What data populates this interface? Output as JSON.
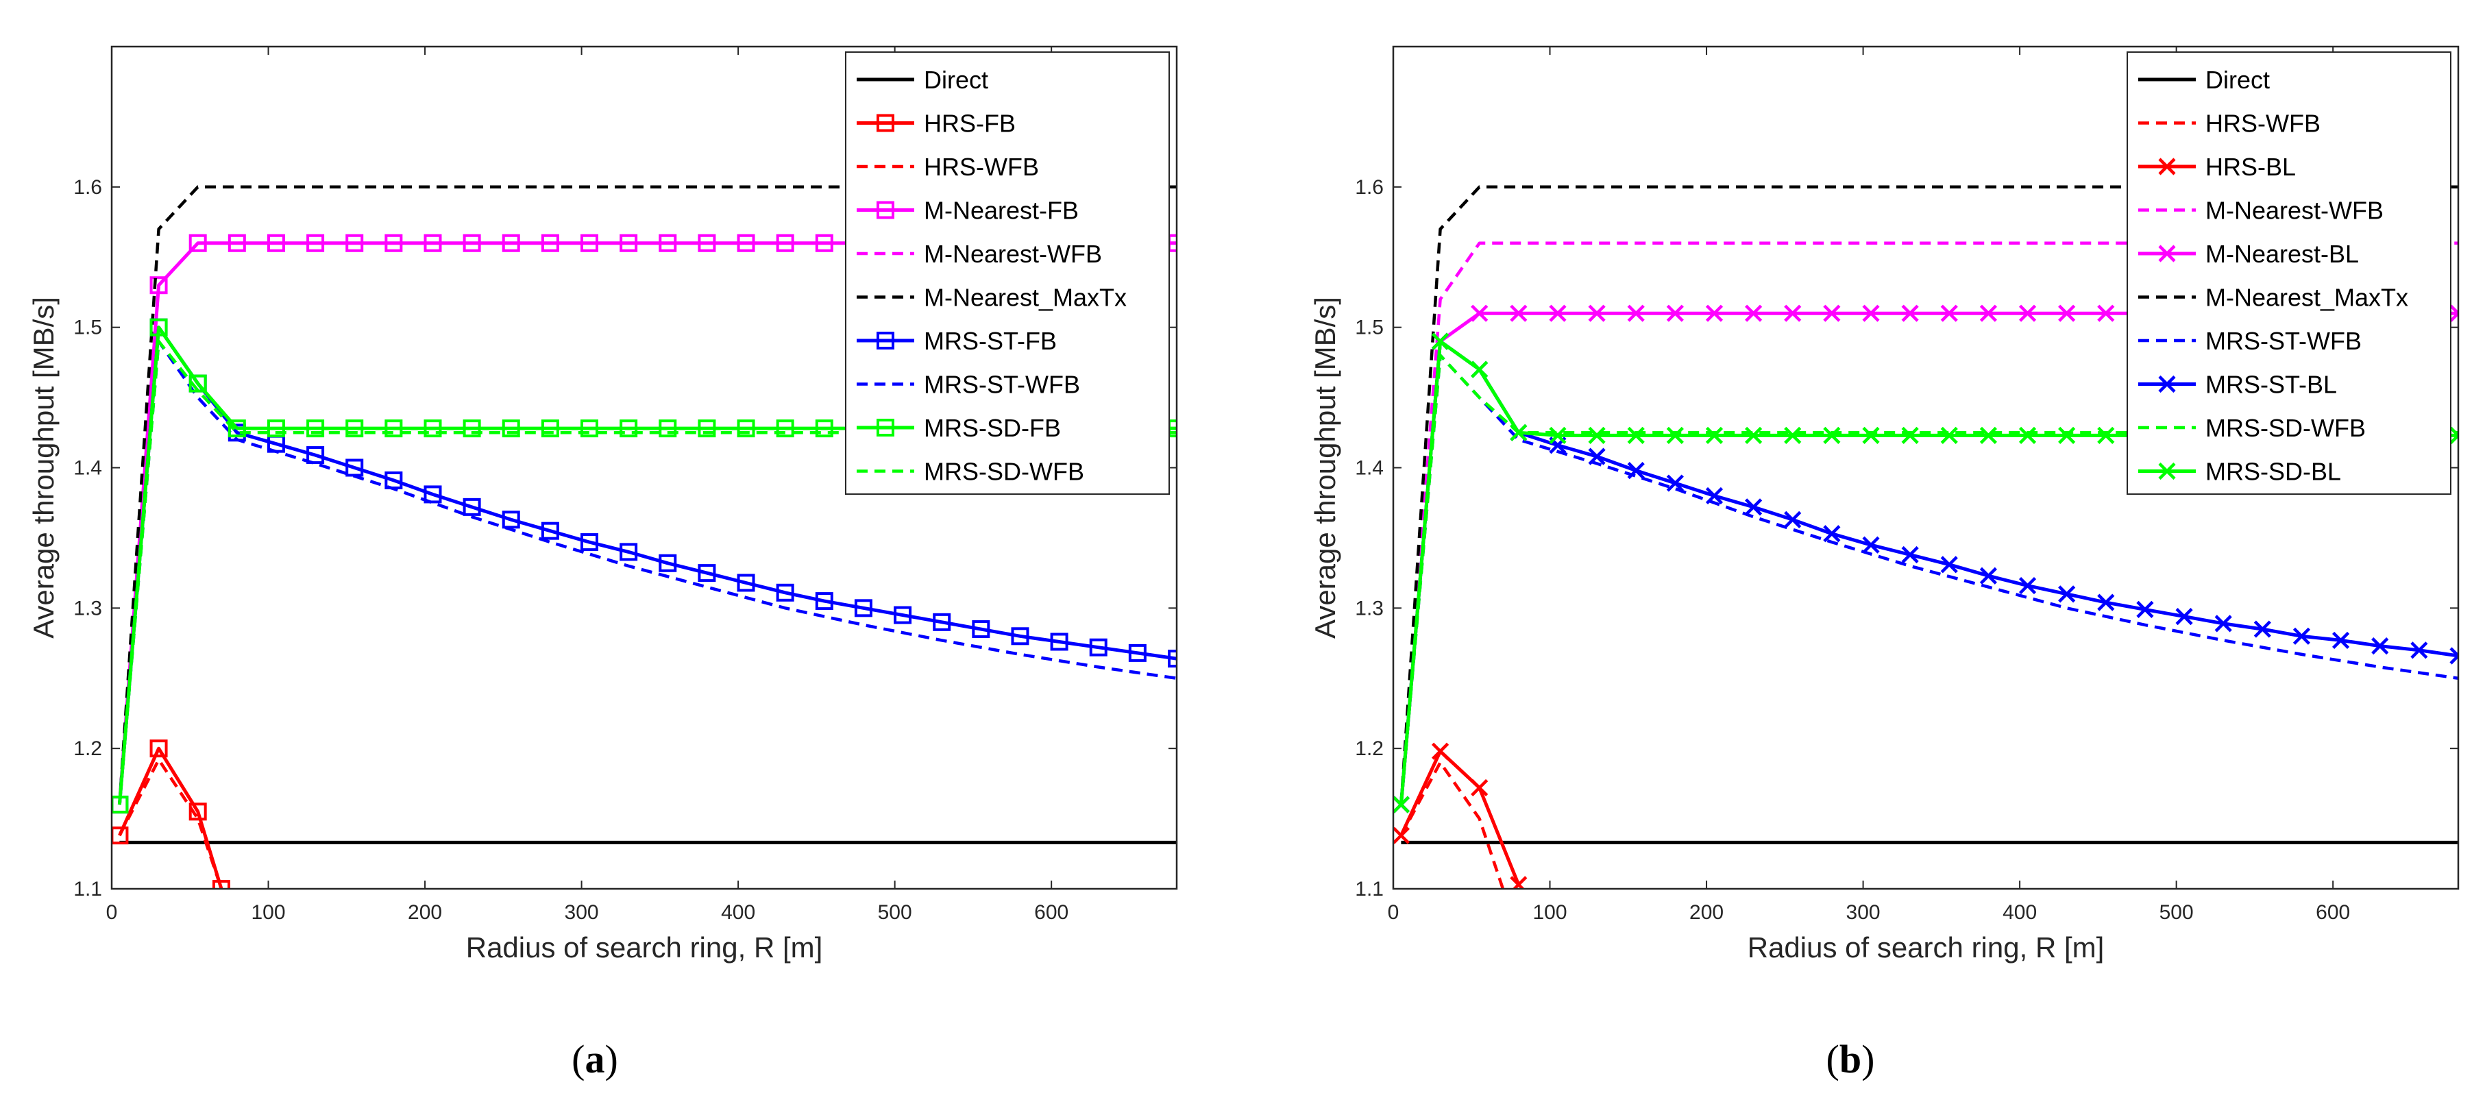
{
  "chart_data": [
    {
      "type": "line",
      "panel_label": "(a)",
      "panel_letter": "a",
      "xlabel": "Radius of search ring, R [m]",
      "ylabel": "Average throughput [MB/s]",
      "xlim": [
        0,
        680
      ],
      "ylim": [
        1.1,
        1.7
      ],
      "xticks": [
        0,
        100,
        200,
        300,
        400,
        500,
        600
      ],
      "yticks": [
        1.1,
        1.2,
        1.3,
        1.4,
        1.5,
        1.6
      ],
      "legend_position": "top-right",
      "series": [
        {
          "name": "Direct",
          "color": "#000000",
          "dash": "solid",
          "marker": "none",
          "x": [
            5,
            680
          ],
          "y": [
            1.133,
            1.133
          ]
        },
        {
          "name": "HRS-FB",
          "color": "#ff0000",
          "dash": "solid",
          "marker": "square",
          "x": [
            5,
            30,
            55,
            70
          ],
          "y": [
            1.138,
            1.2,
            1.155,
            1.1
          ]
        },
        {
          "name": "HRS-WFB",
          "color": "#ff0000",
          "dash": "dashed",
          "marker": "none",
          "x": [
            5,
            30,
            55,
            70
          ],
          "y": [
            1.138,
            1.192,
            1.15,
            1.1
          ]
        },
        {
          "name": "M-Nearest-FB",
          "color": "#ff00ff",
          "dash": "solid",
          "marker": "square",
          "x": [
            5,
            30,
            55,
            80,
            105,
            130,
            155,
            180,
            205,
            230,
            255,
            280,
            305,
            330,
            355,
            380,
            405,
            430,
            455,
            480,
            505,
            530,
            555,
            580,
            605,
            630,
            655,
            680
          ],
          "y": [
            1.16,
            1.53,
            1.56,
            1.56,
            1.56,
            1.56,
            1.56,
            1.56,
            1.56,
            1.56,
            1.56,
            1.56,
            1.56,
            1.56,
            1.56,
            1.56,
            1.56,
            1.56,
            1.56,
            1.56,
            1.56,
            1.56,
            1.56,
            1.56,
            1.56,
            1.56,
            1.56,
            1.56
          ]
        },
        {
          "name": "M-Nearest-WFB",
          "color": "#ff00ff",
          "dash": "dashed",
          "marker": "none",
          "x": [
            5,
            30,
            55,
            80,
            680
          ],
          "y": [
            1.16,
            1.53,
            1.56,
            1.56,
            1.56
          ]
        },
        {
          "name": "M-Nearest_MaxTx",
          "color": "#000000",
          "dash": "dashed",
          "marker": "none",
          "x": [
            5,
            30,
            55,
            80,
            680
          ],
          "y": [
            1.16,
            1.57,
            1.6,
            1.6,
            1.6
          ]
        },
        {
          "name": "MRS-ST-FB",
          "color": "#0000ff",
          "dash": "solid",
          "marker": "square",
          "x": [
            5,
            30,
            55,
            80,
            105,
            130,
            155,
            180,
            205,
            230,
            255,
            280,
            305,
            330,
            355,
            380,
            405,
            430,
            455,
            480,
            505,
            530,
            555,
            580,
            605,
            630,
            655,
            680
          ],
          "y": [
            1.16,
            1.5,
            1.46,
            1.425,
            1.417,
            1.409,
            1.4,
            1.391,
            1.381,
            1.372,
            1.363,
            1.355,
            1.347,
            1.34,
            1.332,
            1.325,
            1.318,
            1.311,
            1.305,
            1.3,
            1.295,
            1.29,
            1.285,
            1.28,
            1.276,
            1.272,
            1.268,
            1.264
          ]
        },
        {
          "name": "MRS-ST-WFB",
          "color": "#0000ff",
          "dash": "dashed",
          "marker": "none",
          "x": [
            5,
            30,
            55,
            80,
            130,
            180,
            230,
            280,
            330,
            380,
            430,
            480,
            530,
            580,
            630,
            680
          ],
          "y": [
            1.16,
            1.49,
            1.45,
            1.42,
            1.403,
            1.385,
            1.365,
            1.347,
            1.33,
            1.315,
            1.3,
            1.288,
            1.277,
            1.267,
            1.258,
            1.25
          ]
        },
        {
          "name": "MRS-SD-FB",
          "color": "#00ff00",
          "dash": "solid",
          "marker": "square",
          "x": [
            5,
            30,
            55,
            80,
            105,
            130,
            155,
            180,
            205,
            230,
            255,
            280,
            305,
            330,
            355,
            380,
            405,
            430,
            455,
            480,
            505,
            530,
            555,
            580,
            605,
            630,
            655,
            680
          ],
          "y": [
            1.16,
            1.5,
            1.46,
            1.428,
            1.428,
            1.428,
            1.428,
            1.428,
            1.428,
            1.428,
            1.428,
            1.428,
            1.428,
            1.428,
            1.428,
            1.428,
            1.428,
            1.428,
            1.428,
            1.428,
            1.428,
            1.428,
            1.428,
            1.428,
            1.428,
            1.428,
            1.428,
            1.428
          ]
        },
        {
          "name": "MRS-SD-WFB",
          "color": "#00ff00",
          "dash": "dashed",
          "marker": "none",
          "x": [
            5,
            30,
            55,
            80,
            680
          ],
          "y": [
            1.16,
            1.49,
            1.455,
            1.425,
            1.425
          ]
        }
      ]
    },
    {
      "type": "line",
      "panel_label": "(b)",
      "panel_letter": "b",
      "xlabel": "Radius of search ring, R [m]",
      "ylabel": "Average throughput [MB/s]",
      "xlim": [
        0,
        680
      ],
      "ylim": [
        1.1,
        1.7
      ],
      "xticks": [
        0,
        100,
        200,
        300,
        400,
        500,
        600
      ],
      "yticks": [
        1.1,
        1.2,
        1.3,
        1.4,
        1.5,
        1.6
      ],
      "legend_position": "top-right",
      "series": [
        {
          "name": "Direct",
          "color": "#000000",
          "dash": "solid",
          "marker": "none",
          "x": [
            5,
            680
          ],
          "y": [
            1.133,
            1.133
          ]
        },
        {
          "name": "HRS-WFB",
          "color": "#ff0000",
          "dash": "dashed",
          "marker": "none",
          "x": [
            5,
            30,
            55,
            70
          ],
          "y": [
            1.138,
            1.19,
            1.15,
            1.1
          ]
        },
        {
          "name": "HRS-BL",
          "color": "#ff0000",
          "dash": "solid",
          "marker": "x",
          "x": [
            5,
            30,
            55,
            80
          ],
          "y": [
            1.138,
            1.198,
            1.172,
            1.103
          ]
        },
        {
          "name": "M-Nearest-WFB",
          "color": "#ff00ff",
          "dash": "dashed",
          "marker": "none",
          "x": [
            5,
            30,
            55,
            80,
            680
          ],
          "y": [
            1.16,
            1.52,
            1.56,
            1.56,
            1.56
          ]
        },
        {
          "name": "M-Nearest-BL",
          "color": "#ff00ff",
          "dash": "solid",
          "marker": "x",
          "x": [
            5,
            30,
            55,
            80,
            105,
            130,
            155,
            180,
            205,
            230,
            255,
            280,
            305,
            330,
            355,
            380,
            405,
            430,
            455,
            480,
            505,
            530,
            555,
            580,
            605,
            630,
            655,
            680
          ],
          "y": [
            1.16,
            1.49,
            1.51,
            1.51,
            1.51,
            1.51,
            1.51,
            1.51,
            1.51,
            1.51,
            1.51,
            1.51,
            1.51,
            1.51,
            1.51,
            1.51,
            1.51,
            1.51,
            1.51,
            1.51,
            1.51,
            1.51,
            1.51,
            1.51,
            1.51,
            1.51,
            1.51,
            1.51
          ]
        },
        {
          "name": "M-Nearest_MaxTx",
          "color": "#000000",
          "dash": "dashed",
          "marker": "none",
          "x": [
            5,
            30,
            55,
            80,
            680
          ],
          "y": [
            1.16,
            1.57,
            1.6,
            1.6,
            1.6
          ]
        },
        {
          "name": "MRS-ST-WFB",
          "color": "#0000ff",
          "dash": "dashed",
          "marker": "none",
          "x": [
            5,
            30,
            55,
            80,
            130,
            180,
            230,
            280,
            330,
            380,
            430,
            480,
            530,
            580,
            630,
            680
          ],
          "y": [
            1.16,
            1.48,
            1.45,
            1.42,
            1.403,
            1.385,
            1.365,
            1.347,
            1.33,
            1.315,
            1.3,
            1.288,
            1.277,
            1.267,
            1.258,
            1.25
          ]
        },
        {
          "name": "MRS-ST-BL",
          "color": "#0000ff",
          "dash": "solid",
          "marker": "x",
          "x": [
            5,
            30,
            55,
            80,
            105,
            130,
            155,
            180,
            205,
            230,
            255,
            280,
            305,
            330,
            355,
            380,
            405,
            430,
            455,
            480,
            505,
            530,
            555,
            580,
            605,
            630,
            655,
            680
          ],
          "y": [
            1.16,
            1.49,
            1.47,
            1.425,
            1.416,
            1.408,
            1.398,
            1.389,
            1.38,
            1.372,
            1.363,
            1.353,
            1.345,
            1.338,
            1.331,
            1.323,
            1.316,
            1.31,
            1.304,
            1.299,
            1.294,
            1.289,
            1.285,
            1.28,
            1.277,
            1.273,
            1.27,
            1.266
          ]
        },
        {
          "name": "MRS-SD-WFB",
          "color": "#00ff00",
          "dash": "dashed",
          "marker": "none",
          "x": [
            5,
            30,
            55,
            80,
            680
          ],
          "y": [
            1.16,
            1.48,
            1.45,
            1.425,
            1.425
          ]
        },
        {
          "name": "MRS-SD-BL",
          "color": "#00ff00",
          "dash": "solid",
          "marker": "x",
          "x": [
            5,
            30,
            55,
            80,
            105,
            130,
            155,
            180,
            205,
            230,
            255,
            280,
            305,
            330,
            355,
            380,
            405,
            430,
            455,
            480,
            505,
            530,
            555,
            580,
            605,
            630,
            655,
            680
          ],
          "y": [
            1.16,
            1.49,
            1.47,
            1.425,
            1.423,
            1.423,
            1.423,
            1.423,
            1.423,
            1.423,
            1.423,
            1.423,
            1.423,
            1.423,
            1.423,
            1.423,
            1.423,
            1.423,
            1.423,
            1.423,
            1.423,
            1.423,
            1.423,
            1.423,
            1.423,
            1.423,
            1.423,
            1.423
          ]
        }
      ]
    }
  ]
}
